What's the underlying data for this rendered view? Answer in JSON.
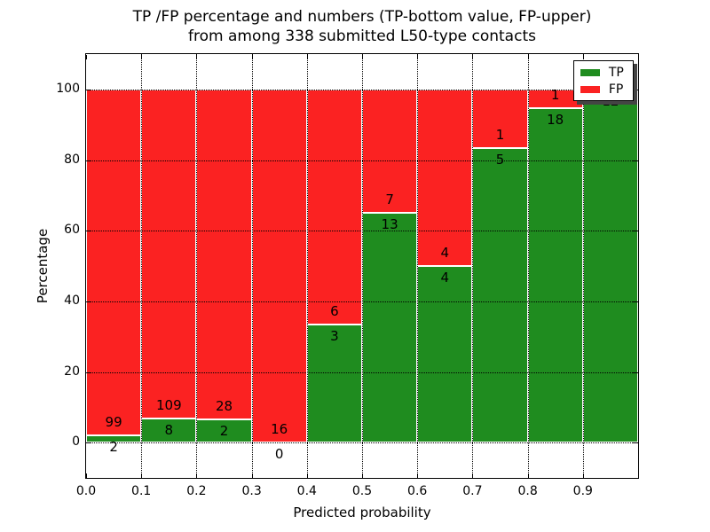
{
  "figure": {
    "title_line1": "TP /FP percentage and numbers (TP-bottom value, FP-upper)",
    "title_line2": "from among 338 submitted L50-type contacts"
  },
  "chart_data": {
    "type": "bar",
    "stacked": true,
    "title": "TP /FP percentage and numbers (TP-bottom value, FP-upper) from among 338 submitted L50-type contacts",
    "xlabel": "Predicted probability",
    "ylabel": "Percentage",
    "xlim": [
      0.0,
      1.0
    ],
    "ylim": [
      -10,
      110
    ],
    "grid": "dotted-black",
    "total_contacts": 338,
    "x_ticks": [
      {
        "value": 0.0,
        "label": "0.0"
      },
      {
        "value": 0.1,
        "label": "0.1"
      },
      {
        "value": 0.2,
        "label": "0.2"
      },
      {
        "value": 0.3,
        "label": "0.3"
      },
      {
        "value": 0.4,
        "label": "0.4"
      },
      {
        "value": 0.5,
        "label": "0.5"
      },
      {
        "value": 0.6,
        "label": "0.6"
      },
      {
        "value": 0.7,
        "label": "0.7"
      },
      {
        "value": 0.8,
        "label": "0.8"
      },
      {
        "value": 0.9,
        "label": "0.9"
      }
    ],
    "y_ticks": [
      {
        "value": 0,
        "label": "0"
      },
      {
        "value": 20,
        "label": "20"
      },
      {
        "value": 40,
        "label": "40"
      },
      {
        "value": 60,
        "label": "60"
      },
      {
        "value": 80,
        "label": "80"
      },
      {
        "value": 100,
        "label": "100"
      }
    ],
    "series_colors": {
      "tp": "#1f8c1f",
      "fp": "#fb2222"
    },
    "legend": {
      "position": "upper-right",
      "entries": [
        {
          "label": "TP",
          "color": "#1f8c1f"
        },
        {
          "label": "FP",
          "color": "#fb2222"
        }
      ]
    },
    "bins": [
      {
        "x0": 0.0,
        "x1": 0.1,
        "tp": 2,
        "fp": 99,
        "tp_pct": 1.98
      },
      {
        "x0": 0.1,
        "x1": 0.2,
        "tp": 8,
        "fp": 109,
        "tp_pct": 6.84
      },
      {
        "x0": 0.2,
        "x1": 0.3,
        "tp": 2,
        "fp": 28,
        "tp_pct": 6.67
      },
      {
        "x0": 0.3,
        "x1": 0.4,
        "tp": 0,
        "fp": 16,
        "tp_pct": 0.0
      },
      {
        "x0": 0.4,
        "x1": 0.5,
        "tp": 3,
        "fp": 6,
        "tp_pct": 33.33
      },
      {
        "x0": 0.5,
        "x1": 0.6,
        "tp": 13,
        "fp": 7,
        "tp_pct": 65.0
      },
      {
        "x0": 0.6,
        "x1": 0.7,
        "tp": 4,
        "fp": 4,
        "tp_pct": 50.0
      },
      {
        "x0": 0.7,
        "x1": 0.8,
        "tp": 5,
        "fp": 1,
        "tp_pct": 83.33
      },
      {
        "x0": 0.8,
        "x1": 0.9,
        "tp": 18,
        "fp": 1,
        "tp_pct": 94.74
      },
      {
        "x0": 0.9,
        "x1": 1.0,
        "tp": 12,
        "fp": 0,
        "tp_pct": 100.0
      }
    ]
  }
}
